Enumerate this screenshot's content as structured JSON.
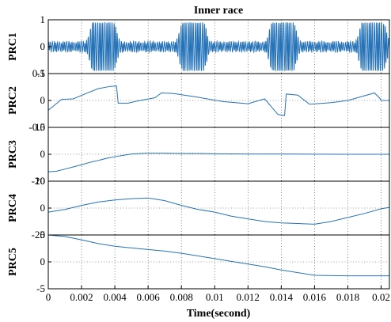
{
  "chart_data": {
    "type": "line",
    "title": "Inner race",
    "xlabel": "Time(second)",
    "xlim": [
      0,
      0.0205
    ],
    "x_ticks": [
      "0",
      "0.002",
      "0.004",
      "0.006",
      "0.008",
      "0.01",
      "0.012",
      "0.014",
      "0.016",
      "0.018",
      "0.02"
    ],
    "grid": true,
    "panels": [
      {
        "ylabel": "PRC1",
        "ylim": [
          -1,
          1
        ],
        "y_ticks": [
          "1",
          "0",
          "-1"
        ],
        "signal": "amplitude-modulated oscillation",
        "burst_centers": [
          0.0033,
          0.0087,
          0.0141,
          0.0195
        ],
        "burst_peak_amplitude": 0.9,
        "baseline_noise_amplitude": 0.2
      },
      {
        "ylabel": "PRC2",
        "ylim": [
          -0.5,
          0.5
        ],
        "y_ticks": [
          "0.5",
          "0",
          "-0.5"
        ],
        "x": [
          0,
          0.0008,
          0.0015,
          0.0022,
          0.003,
          0.0037,
          0.0041,
          0.0042,
          0.0048,
          0.0055,
          0.0064,
          0.0068,
          0.0075,
          0.009,
          0.0105,
          0.012,
          0.013,
          0.0138,
          0.0142,
          0.0143,
          0.015,
          0.0157,
          0.017,
          0.018,
          0.0196,
          0.0199,
          0.02,
          0.0205
        ],
        "y": [
          -0.18,
          0.02,
          0.03,
          0.12,
          0.22,
          0.26,
          0.27,
          -0.05,
          -0.05,
          0.0,
          0.05,
          0.14,
          0.13,
          0.06,
          -0.02,
          -0.06,
          0.03,
          -0.26,
          -0.28,
          0.12,
          0.1,
          -0.07,
          -0.04,
          0.0,
          0.14,
          0.05,
          0.0,
          0.0
        ]
      },
      {
        "ylabel": "PRC3",
        "ylim": [
          -10,
          10
        ],
        "y_ticks": [
          "10",
          "0",
          "-10"
        ],
        "x": [
          0,
          0.0005,
          0.001,
          0.0015,
          0.002,
          0.0025,
          0.003,
          0.0035,
          0.004,
          0.0045,
          0.005,
          0.0055,
          0.006,
          0.007,
          0.008,
          0.009,
          0.01,
          0.012,
          0.014,
          0.016,
          0.018,
          0.02,
          0.0205
        ],
        "y": [
          -6.5,
          -6.3,
          -5.5,
          -4.7,
          -3.9,
          -3.0,
          -2.3,
          -1.5,
          -0.9,
          -0.4,
          0.1,
          0.3,
          0.4,
          0.4,
          0.3,
          0.3,
          0.2,
          0.1,
          0.1,
          0.05,
          0.0,
          0.0,
          0.0
        ]
      },
      {
        "ylabel": "PRC4",
        "ylim": [
          -20,
          20
        ],
        "y_ticks": [
          "20",
          "0",
          "-20"
        ],
        "x": [
          0,
          0.001,
          0.002,
          0.003,
          0.004,
          0.005,
          0.006,
          0.007,
          0.008,
          0.009,
          0.01,
          0.011,
          0.012,
          0.013,
          0.014,
          0.015,
          0.016,
          0.017,
          0.018,
          0.019,
          0.02,
          0.0205
        ],
        "y": [
          -3,
          -1,
          2,
          4.5,
          6,
          7,
          7.5,
          5.5,
          2,
          -1,
          -3,
          -6,
          -8,
          -10,
          -11,
          -11.5,
          -12,
          -10,
          -7,
          -4,
          -0.5,
          0.5
        ]
      },
      {
        "ylabel": "PRC5",
        "ylim": [
          -5,
          5
        ],
        "y_ticks": [
          "5",
          "0",
          "-5"
        ],
        "x": [
          0,
          0.001,
          0.002,
          0.003,
          0.004,
          0.005,
          0.006,
          0.007,
          0.008,
          0.009,
          0.01,
          0.011,
          0.012,
          0.013,
          0.014,
          0.015,
          0.016,
          0.018,
          0.02,
          0.0205
        ],
        "y": [
          5,
          4.7,
          4.1,
          3.4,
          2.9,
          2.6,
          2.3,
          2.0,
          1.6,
          1.1,
          0.6,
          0.1,
          -0.4,
          -0.9,
          -1.5,
          -2.0,
          -2.5,
          -2.6,
          -2.6,
          -2.6
        ]
      }
    ]
  }
}
